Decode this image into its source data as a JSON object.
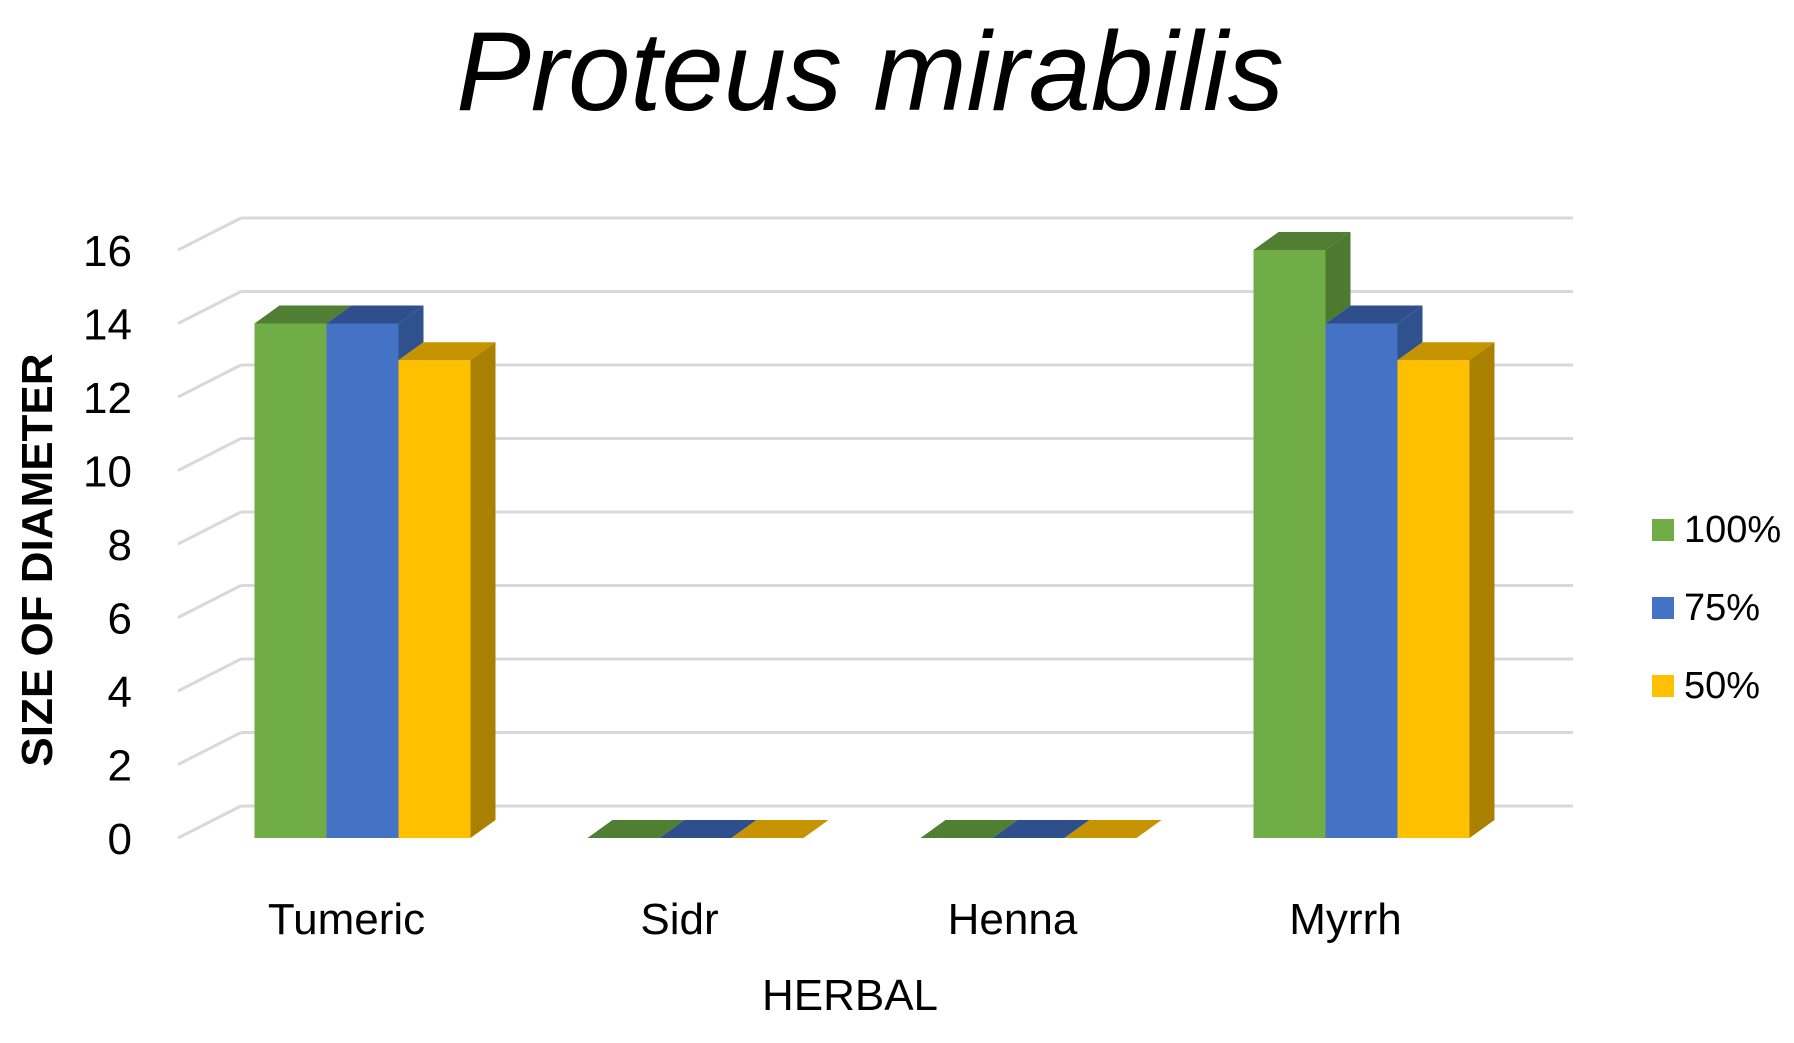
{
  "chart_data": {
    "type": "bar",
    "title": "Proteus mirabilis",
    "xlabel": "HERBAL",
    "ylabel": "SIZE OF DIAMETER",
    "categories": [
      "Tumeric",
      "Sidr",
      "Henna",
      "Myrrh"
    ],
    "series": [
      {
        "name": "100%",
        "values": [
          14,
          0,
          0,
          16
        ],
        "color": "#70AD47",
        "side_color": "#4E7A2F",
        "top_color": "#507E32"
      },
      {
        "name": "75%",
        "values": [
          14,
          0,
          0,
          14
        ],
        "color": "#4472C4",
        "side_color": "#2F528F",
        "top_color": "#2E4F8C"
      },
      {
        "name": "50%",
        "values": [
          13,
          0,
          0,
          13
        ],
        "color": "#FFC000",
        "side_color": "#AA8000",
        "top_color": "#C59400"
      }
    ],
    "yticks": [
      "0",
      "2",
      "4",
      "6",
      "8",
      "10",
      "12",
      "14",
      "16"
    ],
    "ylim": [
      0,
      16
    ],
    "grid": true,
    "legend_position": "right",
    "style": "3d-clustered-column"
  }
}
